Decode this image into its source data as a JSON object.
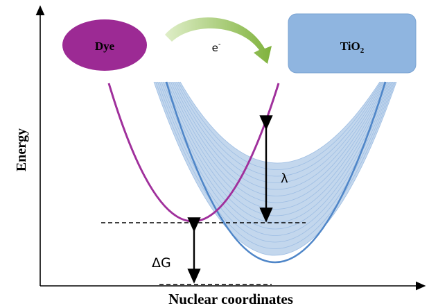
{
  "axes": {
    "ylabel": "Energy",
    "xlabel": "Nuclear coordinates"
  },
  "labels": {
    "dye": "Dye",
    "electron_base": "e",
    "electron_sup": "-",
    "tio2_base": "TiO",
    "tio2_sub": "2",
    "lambda": "λ",
    "delta_g": "ΔG"
  },
  "colors": {
    "dye": "#9c2a94",
    "dye_curve": "#a0309c",
    "tio2_box": "#8fb5e0",
    "tio2_band": "#b9d0ea",
    "tio2_band_lines": "#9dbde3",
    "tio2_center": "#4f86c8",
    "arrow": "#8fbf4e"
  },
  "icons": {
    "electron_transfer": "curved-arrow-icon"
  }
}
